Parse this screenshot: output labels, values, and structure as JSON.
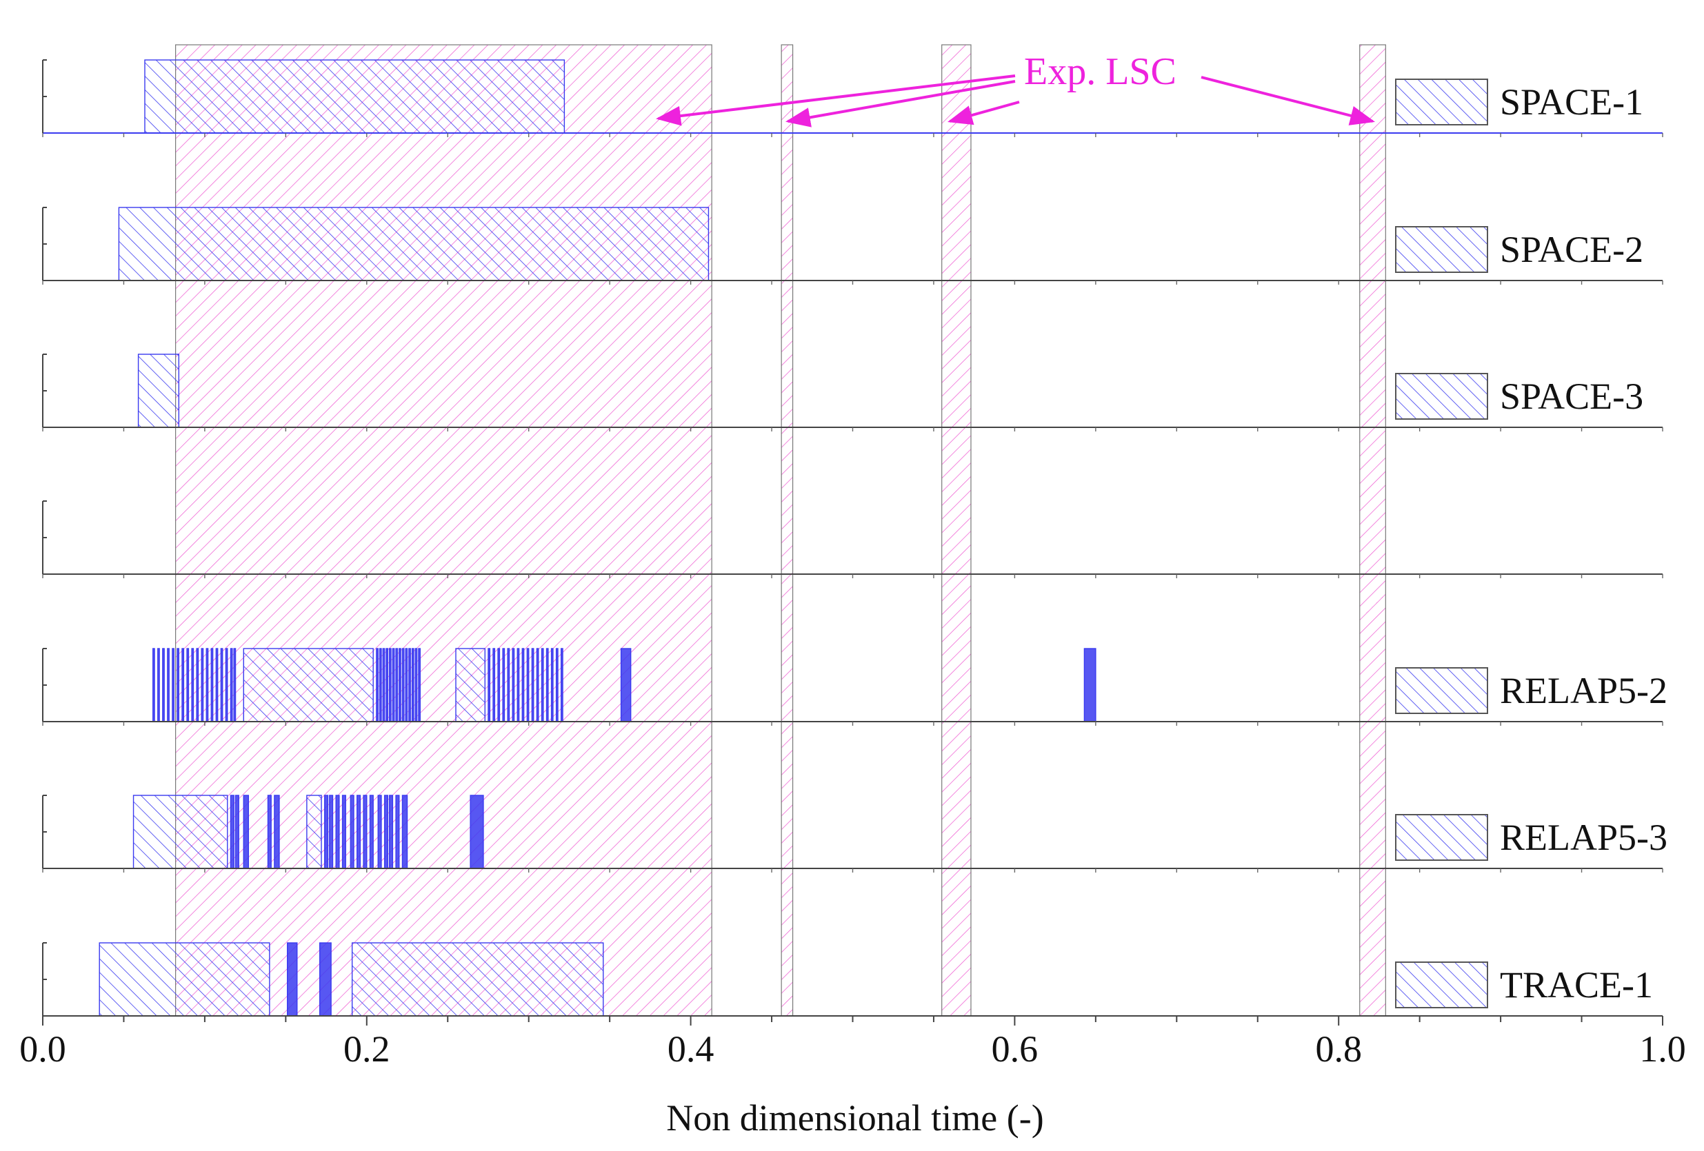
{
  "chart_data": {
    "type": "bar",
    "xlabel": "Non dimensional time (-)",
    "xlim": [
      0.0,
      1.0
    ],
    "xticks": [
      "0.0",
      "0.2",
      "0.4",
      "0.6",
      "0.8",
      "1.0"
    ],
    "xtick_values": [
      0.0,
      0.2,
      0.4,
      0.6,
      0.8,
      1.0
    ],
    "grid": false,
    "legend_position": "right",
    "colors": {
      "code": "#3a3af0",
      "exp": "#ee44cc",
      "annotation": "#ee22dd",
      "axis": "#333333"
    },
    "experimental": {
      "name": "Exp. LSC",
      "intervals": [
        [
          0.082,
          0.413
        ],
        [
          0.456,
          0.463
        ],
        [
          0.555,
          0.573
        ],
        [
          0.813,
          0.829
        ]
      ],
      "arrow_targets": [
        0.38,
        0.46,
        0.56,
        0.821
      ]
    },
    "series": [
      {
        "name": "SPACE-1",
        "intervals": [
          [
            0.063,
            0.322
          ]
        ]
      },
      {
        "name": "SPACE-2",
        "intervals": [
          [
            0.047,
            0.411
          ]
        ]
      },
      {
        "name": "SPACE-3",
        "intervals": [
          [
            0.059,
            0.084
          ]
        ]
      },
      {
        "name": "",
        "intervals": []
      },
      {
        "name": "RELAP5-2",
        "intervals": [
          [
            0.068,
            0.069
          ],
          [
            0.071,
            0.072
          ],
          [
            0.074,
            0.075
          ],
          [
            0.077,
            0.078
          ],
          [
            0.08,
            0.081
          ],
          [
            0.083,
            0.084
          ],
          [
            0.086,
            0.087
          ],
          [
            0.089,
            0.09
          ],
          [
            0.092,
            0.093
          ],
          [
            0.095,
            0.096
          ],
          [
            0.098,
            0.099
          ],
          [
            0.101,
            0.102
          ],
          [
            0.104,
            0.105
          ],
          [
            0.107,
            0.108
          ],
          [
            0.11,
            0.111
          ],
          [
            0.113,
            0.114
          ],
          [
            0.116,
            0.117
          ],
          [
            0.118,
            0.119
          ],
          [
            0.124,
            0.204
          ],
          [
            0.206,
            0.207
          ],
          [
            0.208,
            0.209
          ],
          [
            0.21,
            0.211
          ],
          [
            0.212,
            0.213
          ],
          [
            0.214,
            0.215
          ],
          [
            0.216,
            0.217
          ],
          [
            0.218,
            0.219
          ],
          [
            0.22,
            0.221
          ],
          [
            0.222,
            0.223
          ],
          [
            0.224,
            0.225
          ],
          [
            0.226,
            0.227
          ],
          [
            0.228,
            0.229
          ],
          [
            0.23,
            0.231
          ],
          [
            0.232,
            0.233
          ],
          [
            0.255,
            0.273
          ],
          [
            0.275,
            0.276
          ],
          [
            0.278,
            0.279
          ],
          [
            0.281,
            0.282
          ],
          [
            0.284,
            0.285
          ],
          [
            0.287,
            0.288
          ],
          [
            0.29,
            0.291
          ],
          [
            0.293,
            0.294
          ],
          [
            0.296,
            0.297
          ],
          [
            0.299,
            0.3
          ],
          [
            0.302,
            0.303
          ],
          [
            0.305,
            0.306
          ],
          [
            0.308,
            0.309
          ],
          [
            0.311,
            0.312
          ],
          [
            0.314,
            0.315
          ],
          [
            0.317,
            0.318
          ],
          [
            0.32,
            0.321
          ],
          [
            0.357,
            0.363
          ],
          [
            0.643,
            0.65
          ]
        ]
      },
      {
        "name": "RELAP5-3",
        "intervals": [
          [
            0.056,
            0.114
          ],
          [
            0.116,
            0.118
          ],
          [
            0.119,
            0.121
          ],
          [
            0.124,
            0.127
          ],
          [
            0.139,
            0.141
          ],
          [
            0.143,
            0.146
          ],
          [
            0.163,
            0.172
          ],
          [
            0.174,
            0.176
          ],
          [
            0.177,
            0.179
          ],
          [
            0.181,
            0.183
          ],
          [
            0.185,
            0.187
          ],
          [
            0.19,
            0.192
          ],
          [
            0.194,
            0.196
          ],
          [
            0.198,
            0.2
          ],
          [
            0.202,
            0.204
          ],
          [
            0.207,
            0.209
          ],
          [
            0.211,
            0.213
          ],
          [
            0.214,
            0.216
          ],
          [
            0.218,
            0.22
          ],
          [
            0.222,
            0.225
          ],
          [
            0.264,
            0.272
          ]
        ]
      },
      {
        "name": "TRACE-1",
        "intervals": [
          [
            0.035,
            0.14
          ],
          [
            0.151,
            0.157
          ],
          [
            0.171,
            0.178
          ],
          [
            0.191,
            0.346
          ]
        ]
      }
    ]
  }
}
